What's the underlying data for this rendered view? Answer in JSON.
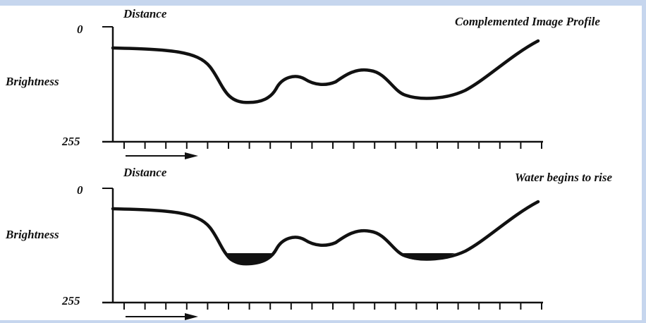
{
  "panels": [
    {
      "id": "top",
      "axis_top_label": "0",
      "axis_bottom_label": "255",
      "y_axis_label": "Brightness",
      "x_axis_label": "Distance",
      "caption": "Complemented Image Profile",
      "shows_water": false
    },
    {
      "id": "bottom",
      "axis_top_label": "0",
      "axis_bottom_label": "255",
      "y_axis_label": "Brightness",
      "x_axis_label": "Distance",
      "caption": "Water begins to rise",
      "shows_water": true
    }
  ],
  "colors": {
    "ink": "#111111",
    "frame": "#c6d6ee",
    "water": "#111111"
  }
}
